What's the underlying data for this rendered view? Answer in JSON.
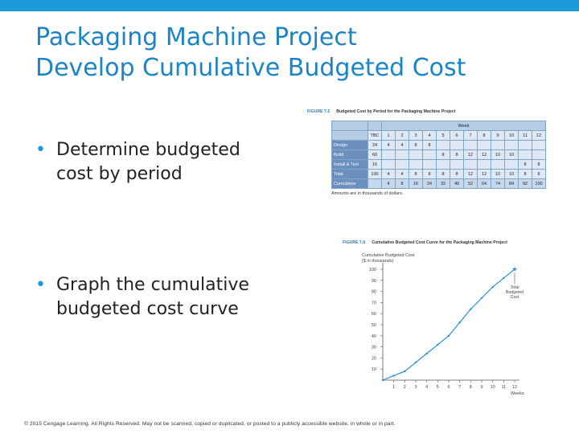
{
  "slide": {
    "title_line1": "Packaging Machine Project",
    "title_line2": "Develop Cumulative Budgeted Cost",
    "bullet1": "Determine budgeted cost by period",
    "bullet2": "Graph the cumulative budgeted cost curve",
    "bullet_glyph": "•",
    "footer": "© 2015 Cengage Learning. All Rights Reserved. May not be scanned, copied or duplicated, or posted to a publicly accessible website, in whole or in part.",
    "accent_color": "#1a9bd7",
    "title_color": "#1a84c7"
  },
  "table_figure": {
    "figure_number": "FIGURE 7.5",
    "caption": "Budgeted Cost by Period for the Packaging Machine Project",
    "week_header": "Week",
    "tbc_header": "TBC",
    "weeks": [
      "1",
      "2",
      "3",
      "4",
      "5",
      "6",
      "7",
      "8",
      "9",
      "10",
      "11",
      "12"
    ],
    "rows": [
      {
        "label": "Design",
        "tbc": "24",
        "cells": [
          "4",
          "4",
          "8",
          "8",
          "",
          "",
          "",
          "",
          "",
          "",
          "",
          ""
        ]
      },
      {
        "label": "Build",
        "tbc": "60",
        "cells": [
          "",
          "",
          "",
          "",
          "8",
          "8",
          "12",
          "12",
          "10",
          "10",
          "",
          ""
        ]
      },
      {
        "label": "Install & Test",
        "tbc": "16",
        "cells": [
          "",
          "",
          "",
          "",
          "",
          "",
          "",
          "",
          "",
          "",
          "8",
          "8"
        ]
      },
      {
        "label": "Total",
        "tbc": "100",
        "cells": [
          "4",
          "4",
          "8",
          "8",
          "8",
          "8",
          "12",
          "12",
          "10",
          "10",
          "8",
          "8"
        ]
      },
      {
        "label": "Cumulative",
        "tbc": "",
        "cells": [
          "4",
          "8",
          "16",
          "24",
          "32",
          "40",
          "52",
          "64",
          "74",
          "84",
          "92",
          "100"
        ]
      }
    ],
    "footnote": "Amounts are in thousands of dollars."
  },
  "chart_figure": {
    "figure_number": "FIGURE 7.6",
    "caption": "Cumulative Budgeted Cost Curve for the Packaging Machine Project",
    "point_label": "Total Budgeted Cost",
    "line_color": "#2b8fd0"
  },
  "chart_data": {
    "type": "line",
    "ylabel": "Cumulative Budgeted Cost ($ in thousands)",
    "xlabel": "Weeks",
    "x": [
      0,
      1,
      2,
      3,
      4,
      5,
      6,
      7,
      8,
      9,
      10,
      11,
      12
    ],
    "y": [
      0,
      4,
      8,
      16,
      24,
      32,
      40,
      52,
      64,
      74,
      84,
      92,
      100
    ],
    "xticks": [
      "1",
      "2",
      "3",
      "4",
      "5",
      "6",
      "7",
      "8",
      "9",
      "10",
      "11",
      "12"
    ],
    "yticks": [
      "10",
      "20",
      "30",
      "40",
      "50",
      "60",
      "70",
      "80",
      "90",
      "100"
    ],
    "xlim": [
      0,
      12
    ],
    "ylim": [
      0,
      100
    ],
    "grid": false
  }
}
